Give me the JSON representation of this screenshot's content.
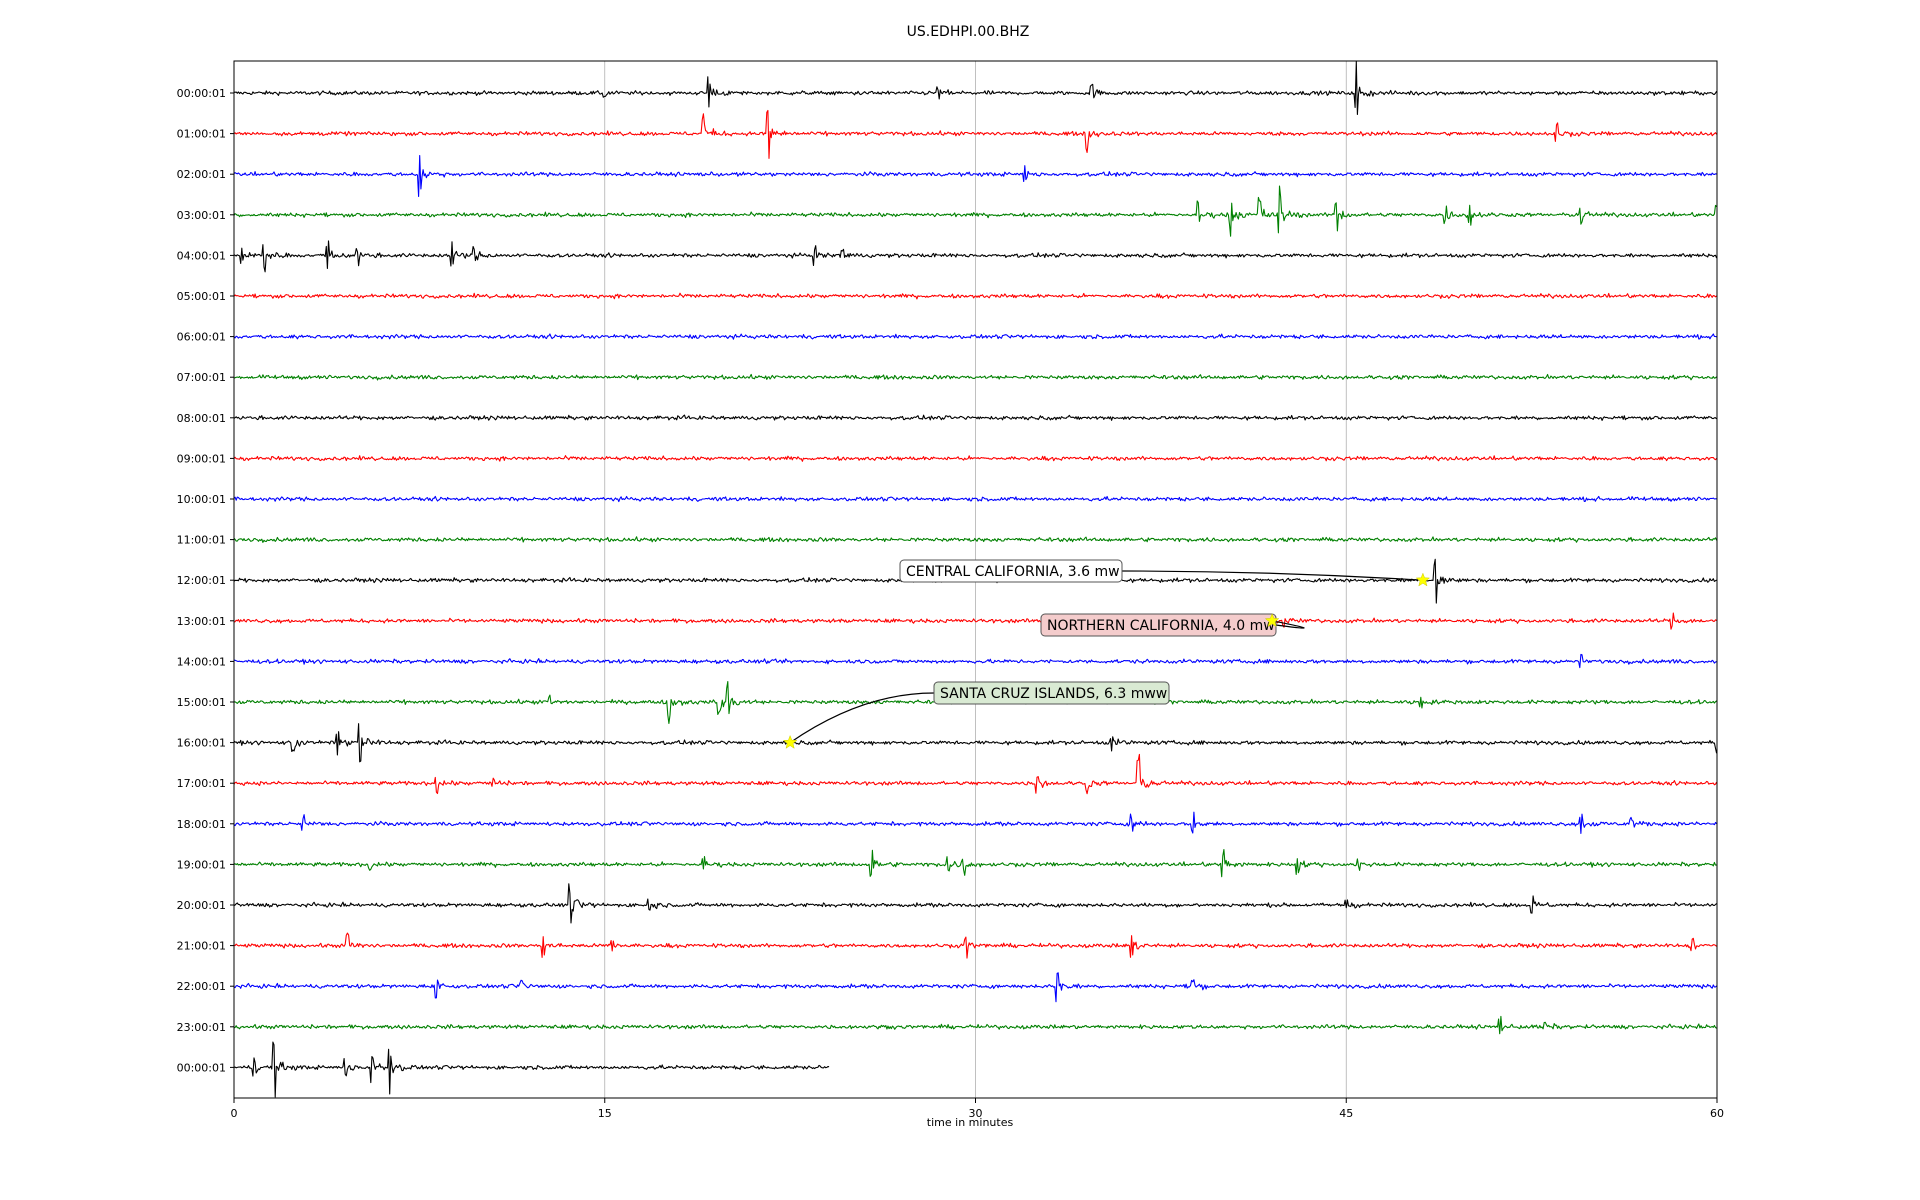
{
  "chart_data": {
    "type": "line",
    "title": "US.EDHPI.00.BHZ",
    "xlabel": "time in minutes",
    "ylabel": "",
    "xlim": [
      0,
      60
    ],
    "x_ticks": [
      0,
      15,
      30,
      45,
      60
    ],
    "grid": "vertical lines at x ticks",
    "row_labels": [
      "00:00:01",
      "01:00:01",
      "02:00:01",
      "03:00:01",
      "04:00:01",
      "05:00:01",
      "06:00:01",
      "07:00:01",
      "08:00:01",
      "09:00:01",
      "10:00:01",
      "11:00:01",
      "12:00:01",
      "13:00:01",
      "14:00:01",
      "15:00:01",
      "16:00:01",
      "17:00:01",
      "18:00:01",
      "19:00:01",
      "20:00:01",
      "21:00:01",
      "22:00:01",
      "23:00:01",
      "00:00:01"
    ],
    "trace_colors": [
      "#000000",
      "#ff0000",
      "#0000ff",
      "#008000"
    ],
    "last_trace_end_minute": 24.1,
    "bursts": [
      [
        [
          15.0,
          0.3
        ],
        [
          19.2,
          1.0
        ],
        [
          28.5,
          0.4
        ],
        [
          34.7,
          0.5
        ],
        [
          45.4,
          1.5
        ]
      ],
      [
        [
          19.0,
          1.2
        ],
        [
          21.6,
          1.4
        ],
        [
          34.5,
          0.9
        ],
        [
          53.5,
          0.5
        ]
      ],
      [
        [
          7.5,
          1.2
        ],
        [
          32.0,
          0.4
        ]
      ],
      [
        [
          39.0,
          0.8
        ],
        [
          40.3,
          1.2
        ],
        [
          41.5,
          1.1
        ],
        [
          42.3,
          1.4
        ],
        [
          44.6,
          0.9
        ],
        [
          49.0,
          0.7
        ],
        [
          50.0,
          0.6
        ],
        [
          54.5,
          0.5
        ],
        [
          60.0,
          0.6
        ]
      ],
      [
        [
          0.3,
          0.4
        ],
        [
          1.2,
          0.9
        ],
        [
          3.8,
          0.8
        ],
        [
          5.0,
          0.5
        ],
        [
          8.8,
          0.7
        ],
        [
          9.7,
          0.5
        ],
        [
          23.5,
          0.5
        ],
        [
          24.6,
          0.4
        ]
      ],
      [],
      [],
      [],
      [],
      [],
      [],
      [],
      [
        [
          48.6,
          1.5
        ]
      ],
      [
        [
          42.5,
          0.4
        ],
        [
          58.2,
          0.4
        ]
      ],
      [
        [
          54.5,
          0.3
        ]
      ],
      [
        [
          12.8,
          0.4
        ],
        [
          17.6,
          1.1
        ],
        [
          19.6,
          1.0
        ],
        [
          20.0,
          1.0
        ],
        [
          48.0,
          0.3
        ]
      ],
      [
        [
          2.4,
          0.6
        ],
        [
          4.2,
          0.7
        ],
        [
          5.1,
          1.3
        ],
        [
          35.5,
          0.4
        ],
        [
          60.0,
          0.5
        ]
      ],
      [
        [
          8.2,
          0.5
        ],
        [
          10.5,
          0.3
        ],
        [
          32.5,
          0.6
        ],
        [
          34.5,
          0.5
        ],
        [
          36.6,
          1.6
        ]
      ],
      [
        [
          2.8,
          0.4
        ],
        [
          36.3,
          0.5
        ],
        [
          38.8,
          0.6
        ],
        [
          54.5,
          0.5
        ],
        [
          56.5,
          0.4
        ]
      ],
      [
        [
          5.5,
          0.3
        ],
        [
          19.0,
          0.4
        ],
        [
          25.8,
          0.8
        ],
        [
          28.9,
          0.6
        ],
        [
          29.5,
          0.5
        ],
        [
          40.0,
          0.9
        ],
        [
          43.0,
          0.5
        ],
        [
          45.5,
          0.3
        ]
      ],
      [
        [
          13.6,
          1.3
        ],
        [
          16.8,
          0.4
        ],
        [
          45.0,
          0.4
        ],
        [
          52.5,
          0.5
        ]
      ],
      [
        [
          4.6,
          0.7
        ],
        [
          12.5,
          0.6
        ],
        [
          15.3,
          0.4
        ],
        [
          29.6,
          0.6
        ],
        [
          36.3,
          0.8
        ],
        [
          59.0,
          0.4
        ]
      ],
      [
        [
          8.2,
          0.7
        ],
        [
          11.6,
          0.4
        ],
        [
          33.3,
          0.9
        ],
        [
          38.8,
          0.4
        ]
      ],
      [
        [
          51.2,
          0.5
        ],
        [
          53.0,
          0.4
        ]
      ],
      [
        [
          0.8,
          0.6
        ],
        [
          1.6,
          1.4
        ],
        [
          4.5,
          0.7
        ],
        [
          5.6,
          0.9
        ],
        [
          6.3,
          1.2
        ]
      ]
    ],
    "events": [
      {
        "label": "CENTRAL CALIFORNIA, 3.6 mw",
        "row": 12,
        "minute": 48.1,
        "box_color": "#ffffff"
      },
      {
        "label": "NORTHERN CALIFORNIA, 4.0 mw",
        "row": 13,
        "minute": 42.0,
        "box_color": "#f4cccc"
      },
      {
        "label": "SANTA CRUZ ISLANDS, 6.3 mww",
        "row": 16,
        "minute": 22.5,
        "box_color": "#d9ead3"
      }
    ],
    "event_marker_color": "#ffff00"
  }
}
